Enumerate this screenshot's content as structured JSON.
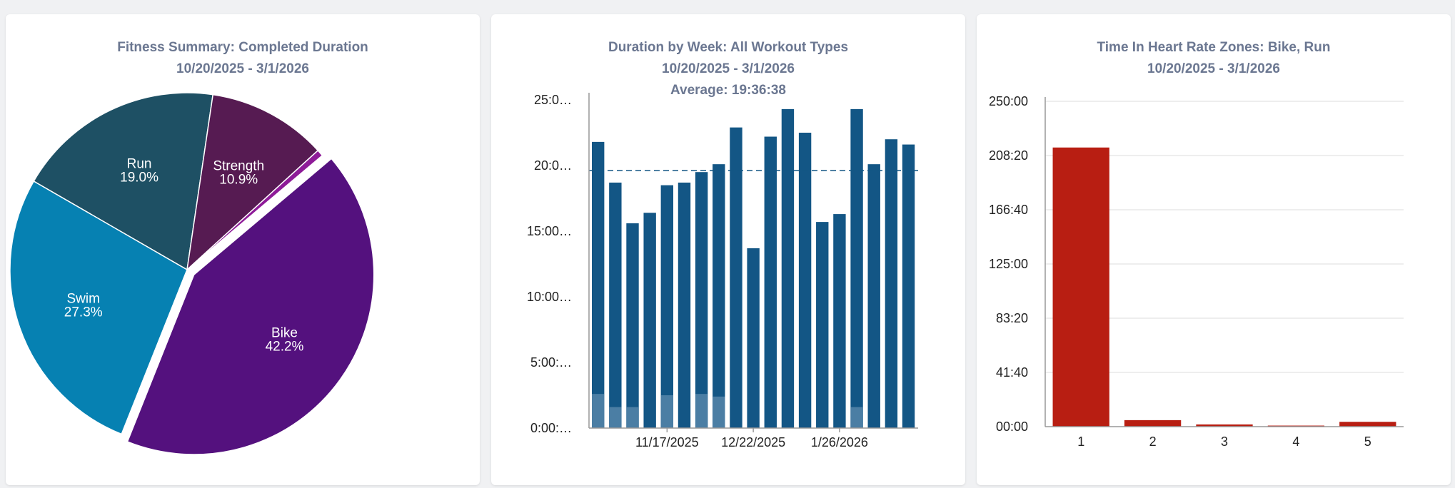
{
  "chart_data": [
    {
      "type": "pie",
      "title": "Fitness Summary: Completed Duration",
      "subtitle": "10/20/2025 - 3/1/2026",
      "slices": [
        {
          "label": "Run",
          "pct_label": "19.0%",
          "value": 19.0,
          "color": "#1e5064"
        },
        {
          "label": "Strength",
          "pct_label": "10.9%",
          "value": 10.9,
          "color": "#561b52"
        },
        {
          "label": "",
          "pct_label": "",
          "value": 0.6,
          "color": "#8e1b98"
        },
        {
          "label": "Bike",
          "pct_label": "42.2%",
          "value": 42.2,
          "color": "#54117e"
        },
        {
          "label": "Swim",
          "pct_label": "27.3%",
          "value": 27.3,
          "color": "#0681b2"
        }
      ]
    },
    {
      "type": "bar",
      "title": "Duration by Week: All Workout Types",
      "subtitle": "10/20/2025 - 3/1/2026",
      "average_label": "Average: 19:36:38",
      "average_value": 19.61,
      "ylim": [
        0,
        25
      ],
      "yticks": [
        0,
        5,
        10,
        15,
        20,
        25
      ],
      "ytick_labels": [
        "0:00:…",
        "5:00:…",
        "10:00…",
        "15:00…",
        "20:0…",
        "25:0…"
      ],
      "xtick_labels": [
        {
          "label": "11/17/2025",
          "index": 4
        },
        {
          "label": "12/22/2025",
          "index": 9
        },
        {
          "label": "1/26/2026",
          "index": 14
        }
      ],
      "bar_color": "#135685",
      "secondary_color": "#4b7ea4",
      "series": [
        {
          "name": "",
          "values": [
            21.8,
            18.7,
            15.6,
            16.4,
            18.5,
            18.7,
            19.5,
            20.1,
            22.9,
            13.7,
            22.2,
            24.3,
            22.5,
            15.7,
            16.3,
            24.3,
            20.1,
            22.0,
            21.6
          ]
        },
        {
          "name": "",
          "values": [
            2.6,
            1.6,
            1.6,
            0,
            2.5,
            0,
            2.6,
            2.4,
            0,
            0,
            0,
            0,
            0,
            0,
            0,
            1.6,
            0,
            0,
            0
          ]
        }
      ]
    },
    {
      "type": "bar",
      "title": "Time In Heart Rate Zones: Bike, Run",
      "subtitle": "10/20/2025 - 3/1/2026",
      "categories": [
        "1",
        "2",
        "3",
        "4",
        "5"
      ],
      "values": [
        214.5,
        5.0,
        1.7,
        0.8,
        3.7
      ],
      "ylim": [
        0,
        250
      ],
      "yticks": [
        0,
        41.667,
        83.333,
        125,
        166.667,
        208.333,
        250
      ],
      "ytick_labels": [
        "00:00",
        "41:40",
        "83:20",
        "125:00",
        "166:40",
        "208:20",
        "250:00"
      ],
      "bar_color": "#b81e12"
    }
  ]
}
